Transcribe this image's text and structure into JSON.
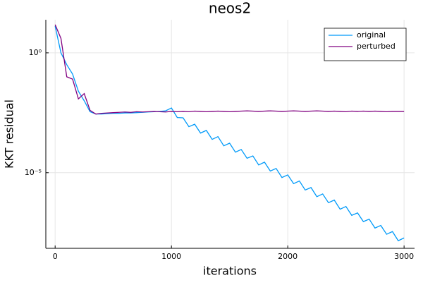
{
  "chart_data": {
    "type": "line",
    "title": "neos2",
    "x_label": "iterations",
    "y_label": "KKT residual",
    "x": [
      0,
      50,
      100,
      150,
      200,
      250,
      300,
      350,
      400,
      450,
      500,
      550,
      600,
      650,
      700,
      750,
      800,
      850,
      900,
      950,
      1000,
      1050,
      1100,
      1150,
      1200,
      1250,
      1300,
      1350,
      1400,
      1450,
      1500,
      1550,
      1600,
      1650,
      1700,
      1750,
      1800,
      1850,
      1900,
      1950,
      2000,
      2050,
      2100,
      2150,
      2200,
      2250,
      2300,
      2350,
      2400,
      2450,
      2500,
      2550,
      2600,
      2650,
      2700,
      2750,
      2800,
      2850,
      2900,
      2950,
      3000
    ],
    "series": [
      {
        "name": "original",
        "color": "#009af9",
        "values": [
          13,
          1,
          0.32,
          0.13,
          0.025,
          0.01,
          0.0035,
          0.0028,
          0.0028,
          0.0029,
          0.003,
          0.003,
          0.0031,
          0.0031,
          0.0032,
          0.0033,
          0.0034,
          0.0035,
          0.0036,
          0.0038,
          0.005,
          0.002,
          0.00195,
          0.00083,
          0.00105,
          0.00045,
          0.00058,
          0.000245,
          0.00032,
          0.000132,
          0.00017,
          7.2e-05,
          9.3e-05,
          4e-05,
          5e-05,
          2.1e-05,
          2.75e-05,
          1.17e-05,
          1.5e-05,
          6.3e-06,
          8.1e-06,
          3.5e-06,
          4.5e-06,
          1.9e-06,
          2.4e-06,
          1e-06,
          1.3e-06,
          5.6e-07,
          7.2e-07,
          3e-07,
          3.9e-07,
          1.66e-07,
          2.1e-07,
          9.1e-08,
          1.15e-07,
          4.9e-08,
          6.3e-08,
          2.7e-08,
          3.5e-08,
          1.45e-08,
          1.9e-08
        ]
      },
      {
        "name": "perturbed",
        "color": "#800080",
        "values": [
          15,
          4,
          0.1,
          0.08,
          0.012,
          0.02,
          0.004,
          0.0028,
          0.003,
          0.0031,
          0.0032,
          0.0033,
          0.0034,
          0.0033,
          0.0035,
          0.0034,
          0.0035,
          0.0036,
          0.0035,
          0.0034,
          0.0036,
          0.0035,
          0.0036,
          0.0035,
          0.0037,
          0.0036,
          0.0035,
          0.0036,
          0.0037,
          0.0036,
          0.0035,
          0.0036,
          0.0037,
          0.0038,
          0.0037,
          0.0036,
          0.0037,
          0.0038,
          0.0037,
          0.0036,
          0.0037,
          0.0038,
          0.0037,
          0.0036,
          0.0037,
          0.0038,
          0.0037,
          0.0036,
          0.0037,
          0.0036,
          0.0035,
          0.0037,
          0.0036,
          0.0037,
          0.0036,
          0.0037,
          0.0036,
          0.0035,
          0.0036,
          0.0036,
          0.0036
        ]
      }
    ],
    "xlim": [
      -80,
      3090
    ],
    "xticks": [
      0,
      1000,
      2000,
      3000
    ],
    "ylim": [
      7e-09,
      24
    ],
    "yscale": "log",
    "yticks": [
      {
        "value": 1,
        "label": "10⁰"
      },
      {
        "value": 1e-05,
        "label": "10⁻⁵"
      }
    ],
    "grid": true,
    "legend": "top-right"
  }
}
